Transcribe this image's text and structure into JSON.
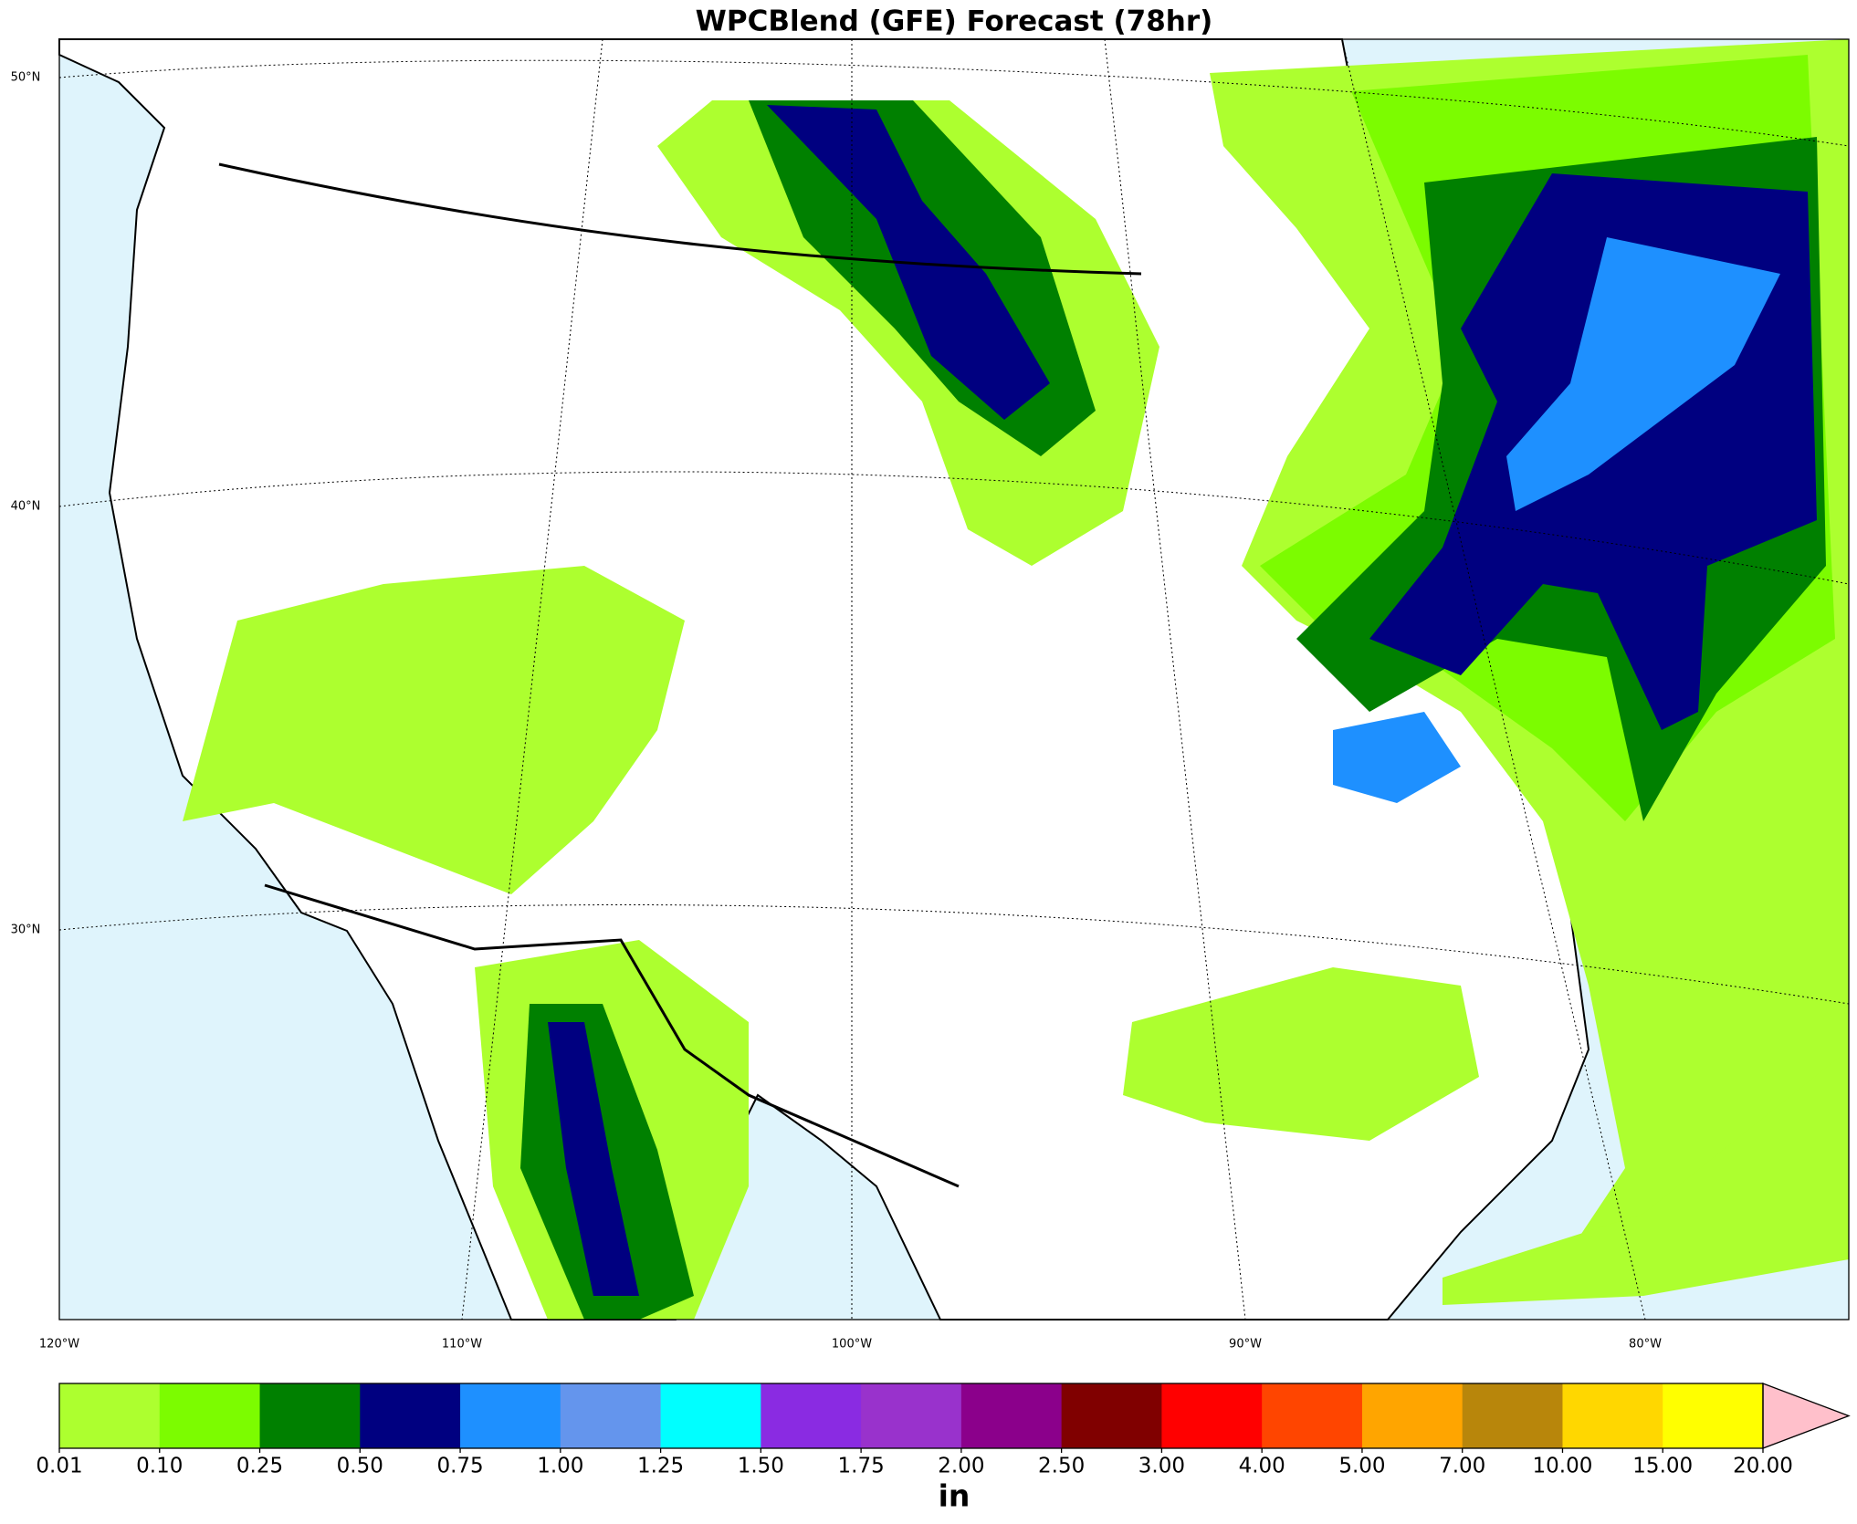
{
  "title": "WPCBlend (GFE) Forecast (78hr)",
  "map": {
    "lat_labels": [
      "50°N",
      "40°N",
      "30°N"
    ],
    "lon_labels": [
      "120°W",
      "110°W",
      "100°W",
      "90°W",
      "80°W"
    ]
  },
  "colorbar": {
    "levels": [
      "0.01",
      "0.10",
      "0.25",
      "0.50",
      "0.75",
      "1.00",
      "1.25",
      "1.50",
      "1.75",
      "2.00",
      "2.50",
      "3.00",
      "4.00",
      "5.00",
      "7.00",
      "10.00",
      "15.00",
      "20.00"
    ],
    "colors": [
      "#adff2f",
      "#7cfc00",
      "#008000",
      "#000080",
      "#1e90ff",
      "#6495ed",
      "#00ffff",
      "#8a2be2",
      "#9932cc",
      "#8b008b",
      "#800000",
      "#ff0000",
      "#ff4500",
      "#ffa500",
      "#b8860b",
      "#ffd700",
      "#ffff00"
    ],
    "extend_color": "#ffc0cb",
    "unit": "in"
  }
}
